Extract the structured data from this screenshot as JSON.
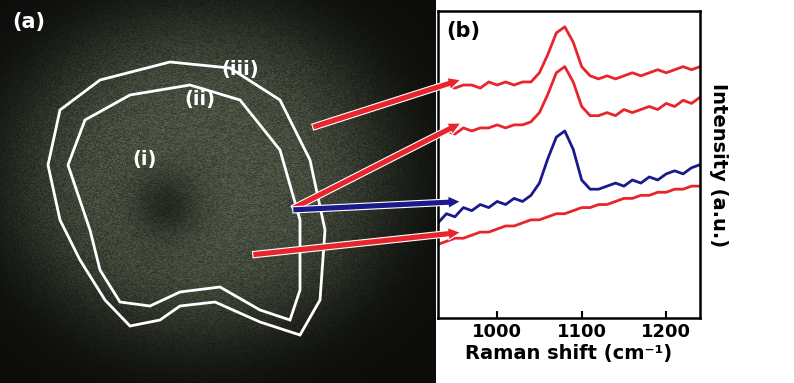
{
  "image_panel": {
    "label": "(a)",
    "regions": [
      "(i)",
      "(ii)",
      "(iii)"
    ]
  },
  "chart_data": {
    "type": "line",
    "label": "(b)",
    "x_label": "Raman shift (cm⁻¹)",
    "y_label": "Intensity (a.u.)",
    "x": [
      930,
      940,
      950,
      960,
      970,
      980,
      990,
      1000,
      1010,
      1020,
      1030,
      1040,
      1050,
      1060,
      1070,
      1080,
      1090,
      1100,
      1110,
      1120,
      1130,
      1140,
      1150,
      1160,
      1170,
      1180,
      1190,
      1200,
      1210,
      1220,
      1230,
      1240
    ],
    "series": [
      {
        "color": "#e8242c",
        "values": [
          0.75,
          0.76,
          0.75,
          0.76,
          0.76,
          0.75,
          0.77,
          0.76,
          0.77,
          0.76,
          0.77,
          0.77,
          0.8,
          0.86,
          0.93,
          0.95,
          0.9,
          0.82,
          0.79,
          0.78,
          0.79,
          0.78,
          0.79,
          0.8,
          0.79,
          0.8,
          0.81,
          0.8,
          0.81,
          0.82,
          0.81,
          0.82
        ]
      },
      {
        "color": "#e8242c",
        "values": [
          0.6,
          0.61,
          0.6,
          0.62,
          0.61,
          0.62,
          0.62,
          0.63,
          0.62,
          0.63,
          0.63,
          0.64,
          0.67,
          0.73,
          0.8,
          0.82,
          0.77,
          0.69,
          0.66,
          0.66,
          0.67,
          0.66,
          0.68,
          0.67,
          0.68,
          0.69,
          0.68,
          0.7,
          0.69,
          0.71,
          0.7,
          0.72
        ]
      },
      {
        "color": "#1a1a8c",
        "values": [
          0.31,
          0.34,
          0.33,
          0.36,
          0.35,
          0.37,
          0.36,
          0.38,
          0.37,
          0.39,
          0.38,
          0.4,
          0.44,
          0.52,
          0.59,
          0.61,
          0.55,
          0.45,
          0.42,
          0.42,
          0.43,
          0.44,
          0.43,
          0.45,
          0.44,
          0.46,
          0.45,
          0.47,
          0.48,
          0.47,
          0.49,
          0.5
        ]
      },
      {
        "color": "#e8242c",
        "values": [
          0.24,
          0.25,
          0.26,
          0.26,
          0.27,
          0.28,
          0.28,
          0.29,
          0.3,
          0.3,
          0.31,
          0.32,
          0.32,
          0.33,
          0.34,
          0.34,
          0.35,
          0.36,
          0.36,
          0.37,
          0.37,
          0.38,
          0.39,
          0.39,
          0.4,
          0.4,
          0.41,
          0.41,
          0.42,
          0.42,
          0.43,
          0.43
        ]
      }
    ],
    "xlim": [
      930,
      1240
    ],
    "xticks": [
      1000,
      1100,
      1200
    ],
    "ylim": [
      0,
      1
    ],
    "tick_labels": "x",
    "grid": false
  }
}
